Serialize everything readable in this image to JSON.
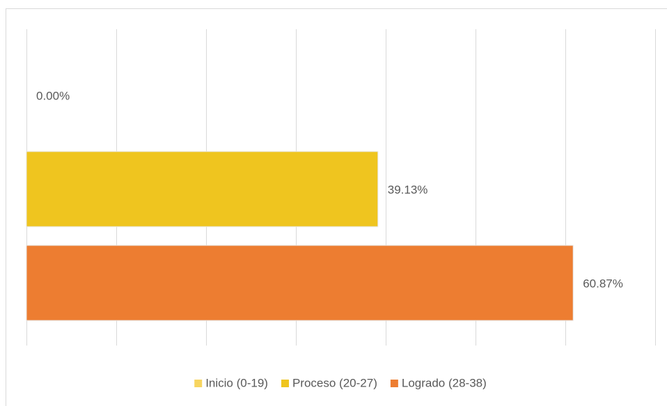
{
  "chart_data": {
    "type": "barh",
    "series": [
      {
        "name": "Inicio (0-19)",
        "color": "#f7d560",
        "values": [
          0
        ],
        "value_labels": [
          "0.00%"
        ]
      },
      {
        "name": "Proceso (20-27)",
        "color": "#efc51f",
        "values": [
          39.13
        ],
        "value_labels": [
          "39.13%"
        ]
      },
      {
        "name": "Logrado (28-38)",
        "color": "#ed7d31",
        "values": [
          60.87
        ],
        "value_labels": [
          "60.87%"
        ]
      }
    ],
    "xlim": [
      0,
      70
    ],
    "xticks": [
      0,
      10,
      20,
      30,
      40,
      50,
      60,
      70
    ],
    "grid": true,
    "legend": "bottom"
  }
}
